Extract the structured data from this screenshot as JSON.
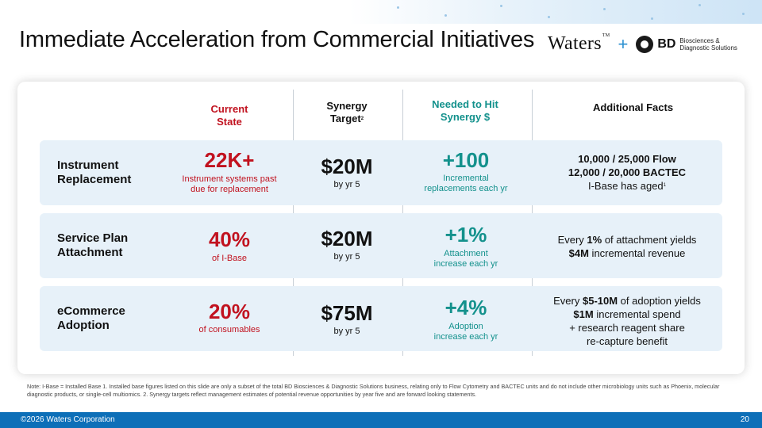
{
  "slide": {
    "title": "Immediate Acceleration from Commercial Initiatives",
    "logos": {
      "waters": "Waters",
      "waters_tm": "TM",
      "plus": "+",
      "bd": "BD",
      "bd_sub_line1": "Biosciences &",
      "bd_sub_line2": "Diagnostic Solutions"
    }
  },
  "table": {
    "headers": {
      "current_state_line1": "Current",
      "current_state_line2": "State",
      "synergy_target_line1": "Synergy",
      "synergy_target_line2": "Target",
      "synergy_target_sup": "2",
      "needed_line1": "Needed to Hit",
      "needed_line2": "Synergy $",
      "additional_facts": "Additional Facts"
    },
    "rows": [
      {
        "label_line1": "Instrument",
        "label_line2": "Replacement",
        "current_value": "22K+",
        "current_desc_line1": "Instrument systems past",
        "current_desc_line2": "due for replacement",
        "target_value": "$20M",
        "target_desc": "by yr 5",
        "needed_value": "+100",
        "needed_desc_line1": "Incremental",
        "needed_desc_line2": "replacements each yr",
        "facts_line1": "10,000 / 25,000 Flow",
        "facts_line2": "12,000 / 20,000 BACTEC",
        "facts_line3": "I-Base has aged",
        "facts_line3_sup": "1"
      },
      {
        "label_line1": "Service Plan",
        "label_line2": "Attachment",
        "current_value": "40%",
        "current_desc_line1": "of I-Base",
        "target_value": "$20M",
        "target_desc": "by yr 5",
        "needed_value": "+1%",
        "needed_desc_line1": "Attachment",
        "needed_desc_line2": "increase each yr",
        "facts_l1_pre": "Every ",
        "facts_l1_bold": "1%",
        "facts_l1_post": " of attachment yields",
        "facts_l2_bold": "$4M",
        "facts_l2_post": " incremental revenue"
      },
      {
        "label_line1": "eCommerce",
        "label_line2": "Adoption",
        "current_value": "20%",
        "current_desc_line1": "of consumables",
        "target_value": "$75M",
        "target_desc": "by yr 5",
        "needed_value": "+4%",
        "needed_desc_line1": "Adoption",
        "needed_desc_line2": "increase each yr",
        "facts_l1_pre": "Every ",
        "facts_l1_bold": "$5-10M",
        "facts_l1_post": " of adoption yields",
        "facts_l2_bold": "$1M",
        "facts_l2_post": " incremental spend",
        "facts_l3": "+ research reagent share",
        "facts_l4": "re-capture benefit"
      }
    ]
  },
  "note": "Note: I-Base = Installed Base 1. Installed base figures listed on this slide are only a subset of the total BD Biosciences & Diagnostic Solutions business, relating only to Flow Cytometry and BACTEC units and do not include other microbiology units such as Phoenix, molecular diagnostic products, or single-cell multiomics. 2. Synergy targets reflect management estimates of potential revenue opportunities by year five and are forward looking statements.",
  "footer": {
    "copyright": "©2026 Waters Corporation",
    "page_number": "20"
  },
  "colors": {
    "accent_red": "#c1121f",
    "accent_teal": "#13918c",
    "footer_blue": "#0d6fb8",
    "row_bg": "#e7f1f9"
  }
}
